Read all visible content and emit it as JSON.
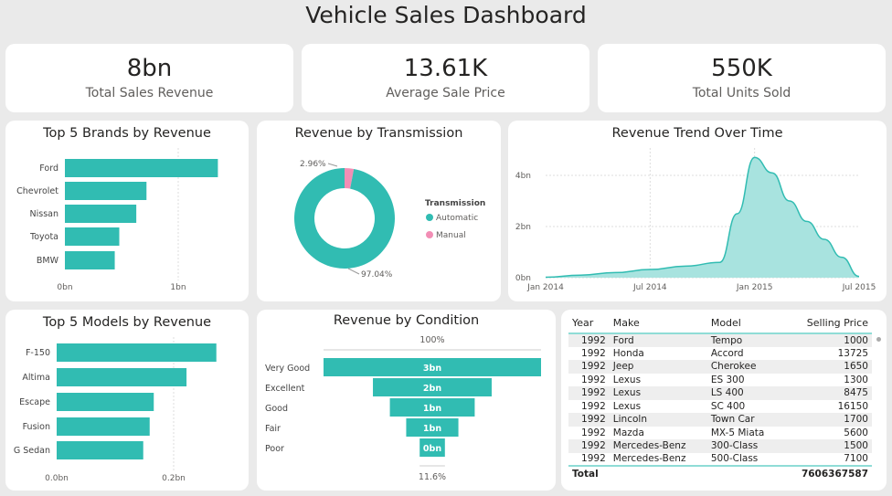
{
  "title": "Vehicle Sales Dashboard",
  "kpis": [
    {
      "value": "8bn",
      "label": "Total Sales Revenue"
    },
    {
      "value": "13.61K",
      "label": "Average Sale Price"
    },
    {
      "value": "550K",
      "label": "Total Units Sold"
    }
  ],
  "colors": {
    "teal": "#31bcb2",
    "pink": "#f28eb5",
    "area": "#a8e3df"
  },
  "chart_data": [
    {
      "type": "bar",
      "title": "Top 5 Brands by Revenue",
      "categories": [
        "Ford",
        "Chevrolet",
        "Nissan",
        "Toyota",
        "BMW"
      ],
      "values": [
        1.35,
        0.72,
        0.63,
        0.48,
        0.44
      ],
      "unit": "bn",
      "xticks": [
        "0bn",
        "1bn"
      ],
      "xlim": [
        0,
        1.35
      ]
    },
    {
      "type": "pie",
      "title": "Revenue by Transmission",
      "legend_title": "Transmission",
      "categories": [
        "Automatic",
        "Manual"
      ],
      "values": [
        97.04,
        2.96
      ],
      "labels": [
        "97.04%",
        "2.96%"
      ]
    },
    {
      "type": "area",
      "title": "Revenue Trend Over Time",
      "x": [
        "2014-01",
        "2014-03",
        "2014-05",
        "2014-07",
        "2014-09",
        "2014-11",
        "2014-12",
        "2015-01",
        "2015-02",
        "2015-03",
        "2015-04",
        "2015-05",
        "2015-06",
        "2015-07"
      ],
      "values": [
        0.02,
        0.1,
        0.2,
        0.32,
        0.45,
        0.6,
        2.5,
        4.7,
        4.1,
        3.0,
        2.2,
        1.5,
        0.8,
        0.05
      ],
      "xticks": [
        "Jan 2014",
        "Jul 2014",
        "Jan 2015",
        "Jul 2015"
      ],
      "yticks": [
        "0bn",
        "2bn",
        "4bn"
      ],
      "ylim": [
        0,
        5
      ]
    },
    {
      "type": "bar",
      "title": "Top 5 Models by Revenue",
      "categories": [
        "F-150",
        "Altima",
        "Escape",
        "Fusion",
        "G Sedan"
      ],
      "values": [
        0.273,
        0.222,
        0.166,
        0.159,
        0.148
      ],
      "unit": "bn",
      "xticks": [
        "0.0bn",
        "0.2bn"
      ]
    },
    {
      "type": "funnel",
      "title": "Revenue by Condition",
      "categories": [
        "Very Good",
        "Excellent",
        "Good",
        "Fair",
        "Poor"
      ],
      "values": [
        100,
        54.6,
        39,
        24,
        11.6
      ],
      "labels": [
        "3bn",
        "2bn",
        "1bn",
        "1bn",
        "0bn"
      ],
      "top_label": "100%",
      "bottom_label": "11.6%"
    }
  ],
  "table": {
    "headers": [
      "Year",
      "Make",
      "Model",
      "Selling Price"
    ],
    "rows": [
      [
        "1992",
        "Ford",
        "Tempo",
        "1000"
      ],
      [
        "1992",
        "Honda",
        "Accord",
        "13725"
      ],
      [
        "1992",
        "Jeep",
        "Cherokee",
        "1650"
      ],
      [
        "1992",
        "Lexus",
        "ES 300",
        "1300"
      ],
      [
        "1992",
        "Lexus",
        "LS 400",
        "8475"
      ],
      [
        "1992",
        "Lexus",
        "SC 400",
        "16150"
      ],
      [
        "1992",
        "Lincoln",
        "Town Car",
        "1700"
      ],
      [
        "1992",
        "Mazda",
        "MX-5 Miata",
        "5600"
      ],
      [
        "1992",
        "Mercedes-Benz",
        "300-Class",
        "1500"
      ],
      [
        "1992",
        "Mercedes-Benz",
        "500-Class",
        "7100"
      ]
    ],
    "total_label": "Total",
    "total_value": "7606367587"
  }
}
